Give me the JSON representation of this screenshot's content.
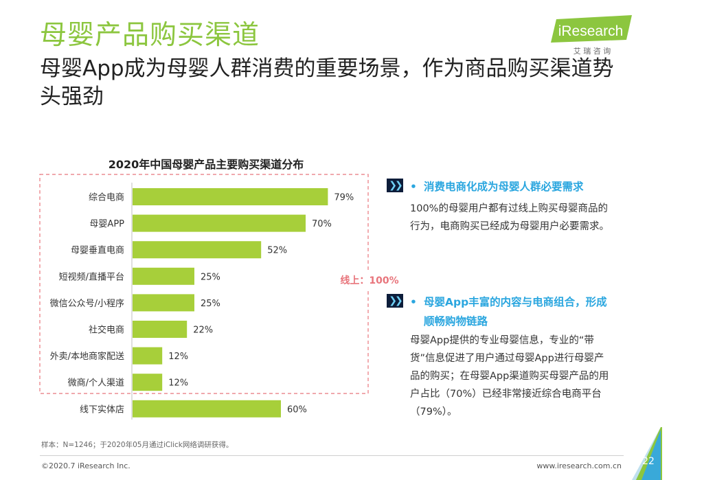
{
  "header": {
    "title": "母婴产品购买渠道",
    "subtitle": "母婴App成为母婴人群消费的重要场景，作为商品购买渠道势头强劲"
  },
  "logo": {
    "brand": "iResearch",
    "tagline": "艾 瑞 咨 询"
  },
  "chart_data": {
    "type": "bar",
    "orientation": "horizontal",
    "title": "2020年中国母婴产品主要购买渠道分布",
    "categories": [
      "综合电商",
      "母婴APP",
      "母婴垂直电商",
      "短视频/直播平台",
      "微信公众号/小程序",
      "社交电商",
      "外卖/本地商家配送",
      "微商/个人渠道",
      "线下实体店"
    ],
    "values": [
      79,
      70,
      52,
      25,
      25,
      22,
      12,
      12,
      60
    ],
    "value_labels": [
      "79%",
      "70%",
      "52%",
      "25%",
      "25%",
      "22%",
      "12%",
      "12%",
      "60%"
    ],
    "xlim": [
      0,
      100
    ],
    "grid": false,
    "color": "#a7cf3a",
    "annotation": "线上：100%",
    "annotation_color": "#e8757c"
  },
  "bullets": [
    {
      "icon": "double-chevron-icon",
      "dot": "•",
      "heading": "消费电商化成为母婴人群必要需求",
      "body": "100%的母婴用户都有过线上购买母婴商品的行为，电商购买已经成为母婴用户必要需求。"
    },
    {
      "icon": "double-chevron-icon",
      "dot": "•",
      "heading": "母婴App丰富的内容与电商组合，形成顺畅购物链路",
      "body": "母婴App提供的专业母婴信息，专业的“带货”信息促进了用户通过母婴App进行母婴产品的购买；在母婴App渠道购买母婴产品的用户占比（70%）已经非常接近综合电商平台（79%）。"
    }
  ],
  "footer": {
    "sample_note": "样本：N=1246；于2020年05月通过iClick网络调研获得。",
    "copyright": "©2020.7 iResearch Inc.",
    "website": "www.iresearch.com.cn",
    "page_number": "22"
  },
  "colors": {
    "title": "#8cc63f",
    "bar": "#a7cf3a",
    "accent_blue": "#2aa6df",
    "dashed_box": "#e8757c"
  }
}
